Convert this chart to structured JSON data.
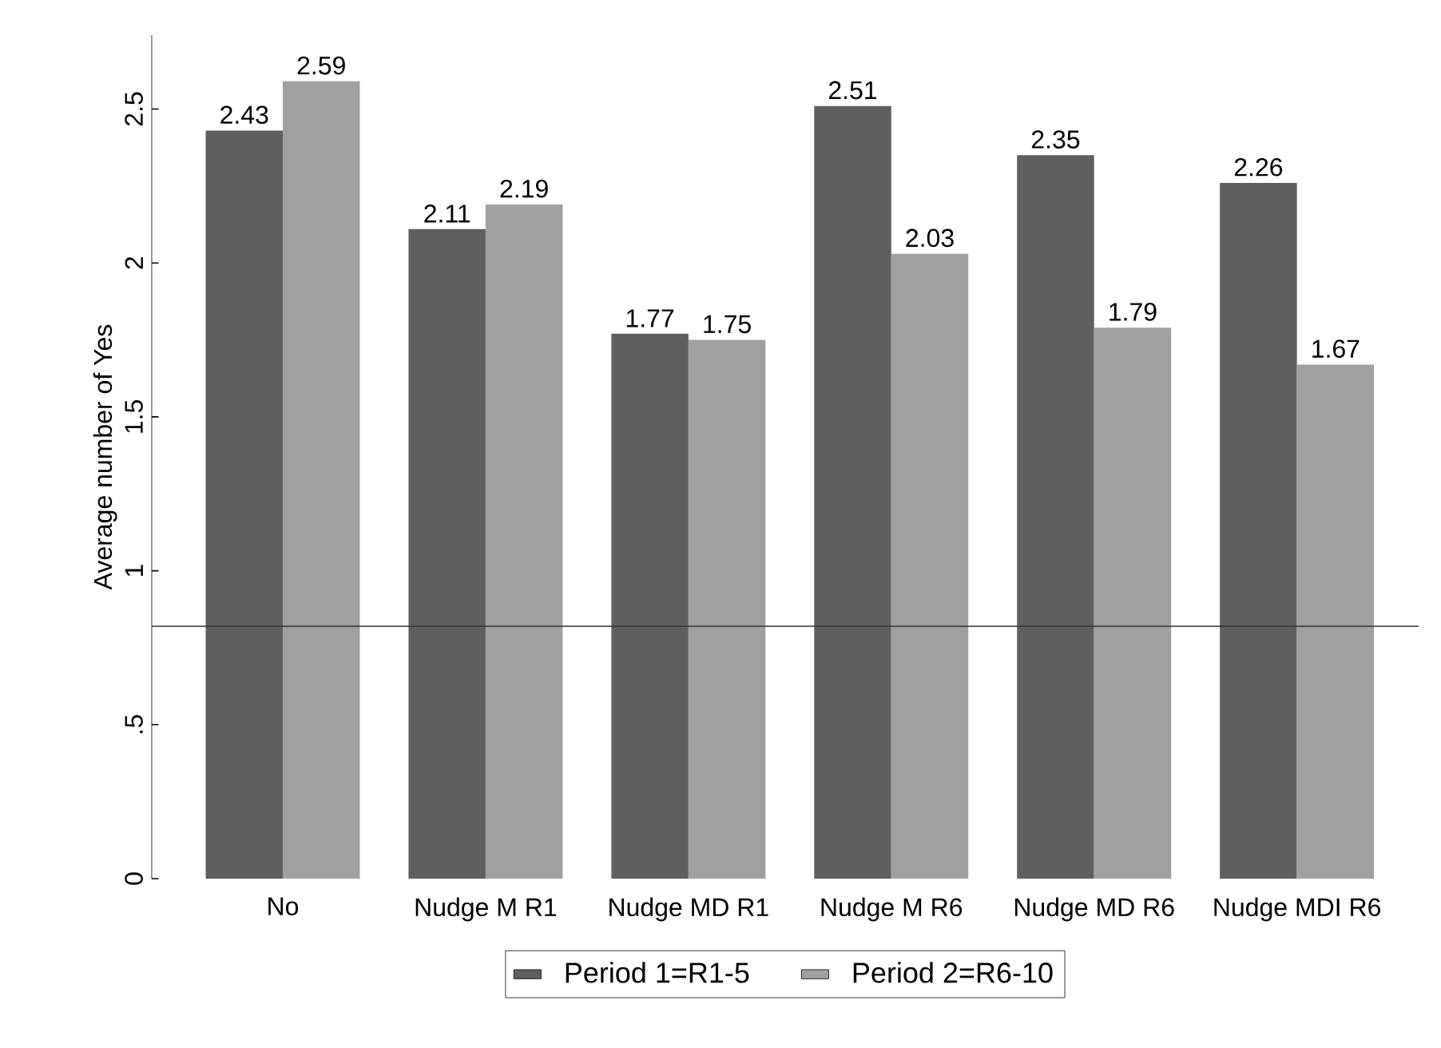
{
  "chart_data": {
    "type": "bar",
    "ylabel": "Average number of Yes",
    "categories": [
      "No",
      "Nudge M R1",
      "Nudge MD R1",
      "Nudge M R6",
      "Nudge MD R6",
      "Nudge MDI R6"
    ],
    "series": [
      {
        "name": "Period 1=R1-5",
        "color": "#5f5f5f",
        "values": [
          2.43,
          2.11,
          1.77,
          2.51,
          2.35,
          2.26
        ]
      },
      {
        "name": "Period 2=R6-10",
        "color": "#a0a0a0",
        "values": [
          2.59,
          2.19,
          1.75,
          2.03,
          1.79,
          1.67
        ]
      }
    ],
    "ylim": [
      0,
      2.74
    ],
    "yticks": [
      0,
      {
        "value": 0.5,
        "label": ".5"
      },
      1,
      1.5,
      2,
      2.5
    ],
    "ref_lines": [
      {
        "axis": "y",
        "value": 0.82,
        "color": "#333333"
      }
    ],
    "data_labels": true,
    "legend": "bottom",
    "grid": false
  }
}
